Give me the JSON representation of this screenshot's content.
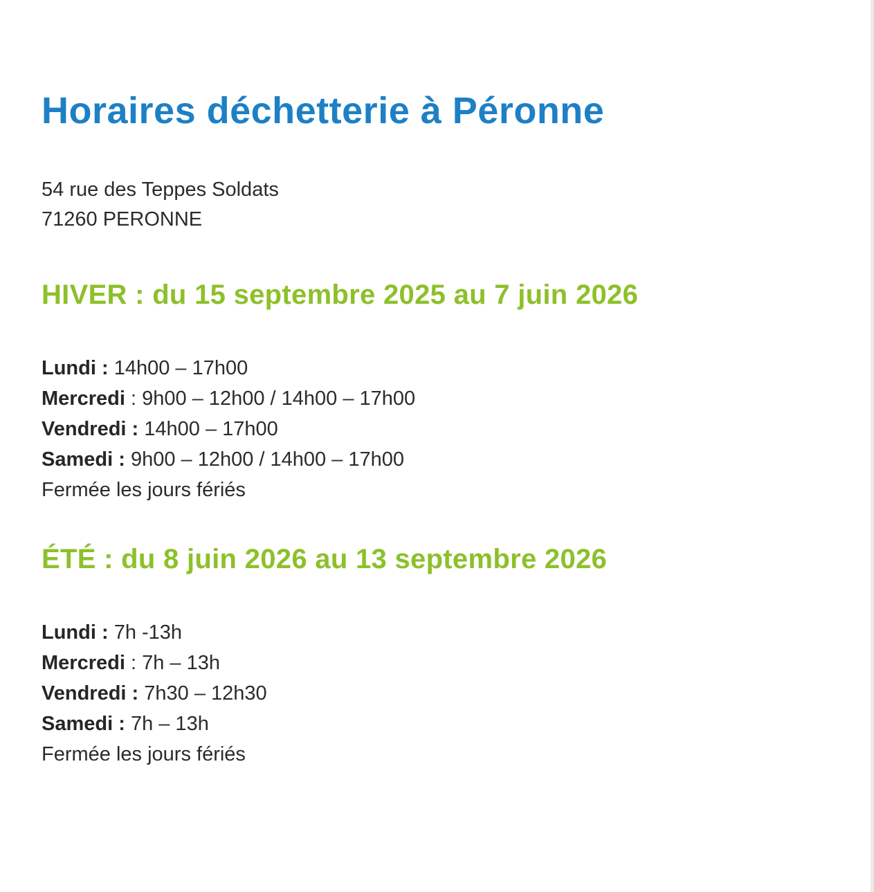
{
  "page": {
    "title": "Horaires déchetterie à Péronne",
    "address": {
      "line1": "54 rue des Teppes Soldats",
      "line2": "71260 PERONNE"
    }
  },
  "sections": [
    {
      "heading": "HIVER : du 15 septembre 2025 au 7 juin 2026",
      "rows": [
        {
          "label": "Lundi :",
          "value": "14h00 – 17h00"
        },
        {
          "label": "Mercredi",
          "value": ": 9h00 – 12h00 / 14h00 – 17h00"
        },
        {
          "label": "Vendredi :",
          "value": "14h00 – 17h00"
        },
        {
          "label": "Samedi :",
          "value": "9h00 – 12h00 / 14h00 – 17h00"
        }
      ],
      "note": "Fermée les jours fériés"
    },
    {
      "heading": "ÉTÉ : du 8 juin 2026 au 13 septembre 2026",
      "rows": [
        {
          "label": "Lundi :",
          "value": "7h -13h"
        },
        {
          "label": "Mercredi",
          "value": ": 7h – 13h"
        },
        {
          "label": "Vendredi :",
          "value": "7h30 – 12h30"
        },
        {
          "label": "Samedi :",
          "value": "7h – 13h"
        }
      ],
      "note": "Fermée les jours fériés"
    }
  ],
  "colors": {
    "title_blue": "#1d80c5",
    "season_green": "#8dc02a",
    "body_text": "#2b2b2b",
    "scrollbar_gray": "#e9e9e9",
    "background": "#ffffff"
  }
}
